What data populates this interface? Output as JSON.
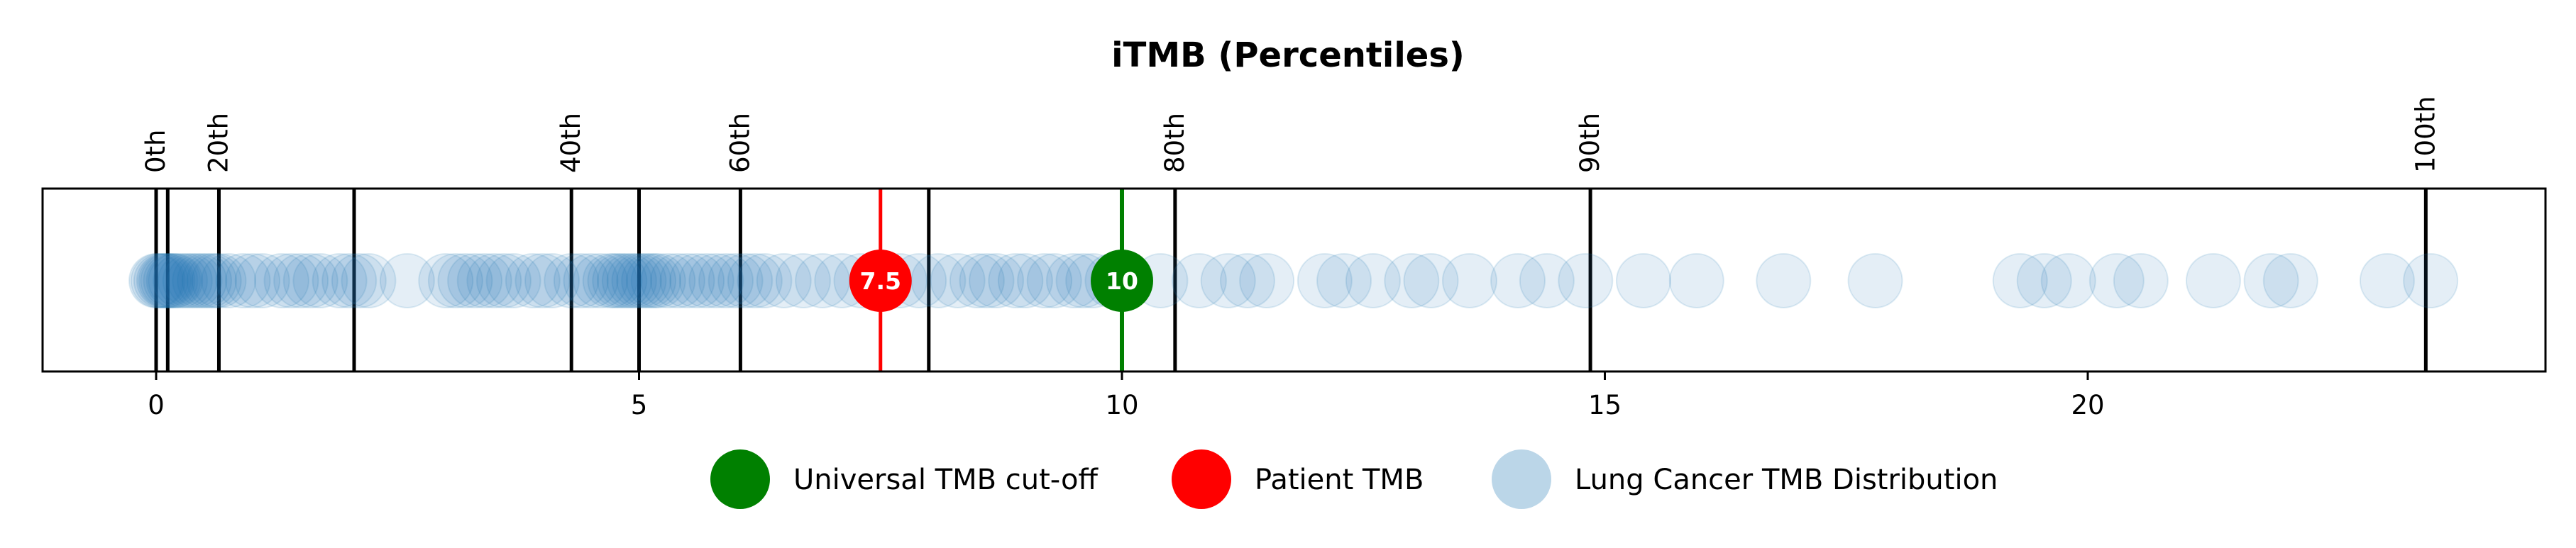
{
  "chart_data": {
    "type": "scatter",
    "title": "iTMB (Percentiles)",
    "xlim": [
      -1.2,
      24.7
    ],
    "xticks": [
      0,
      5,
      10,
      15,
      20
    ],
    "grid": false,
    "percentiles": [
      {
        "label": "0th",
        "value": 0.0,
        "show_label": true
      },
      {
        "label": "",
        "value": 0.12,
        "show_label": false
      },
      {
        "label": "20th",
        "value": 0.65,
        "show_label": true
      },
      {
        "label": "",
        "value": 2.05,
        "show_label": false
      },
      {
        "label": "40th",
        "value": 4.3,
        "show_label": true
      },
      {
        "label": "",
        "value": 5.0,
        "show_label": false
      },
      {
        "label": "60th",
        "value": 6.05,
        "show_label": true
      },
      {
        "label": "",
        "value": 8.0,
        "show_label": false
      },
      {
        "label": "80th",
        "value": 10.55,
        "show_label": true
      },
      {
        "label": "90th",
        "value": 14.85,
        "show_label": true
      },
      {
        "label": "100th",
        "value": 23.5,
        "show_label": true
      }
    ],
    "distribution": {
      "name": "Lung Cancer TMB Distribution",
      "color": "#1f77b4",
      "values": [
        0.0,
        0.02,
        0.05,
        0.08,
        0.1,
        0.12,
        0.15,
        0.18,
        0.2,
        0.25,
        0.3,
        0.35,
        0.4,
        0.45,
        0.5,
        0.55,
        0.6,
        0.65,
        0.75,
        0.9,
        1.0,
        1.1,
        1.3,
        1.4,
        1.5,
        1.6,
        1.7,
        1.9,
        2.0,
        2.1,
        2.2,
        2.6,
        3.0,
        3.1,
        3.2,
        3.3,
        3.4,
        3.5,
        3.6,
        3.7,
        3.9,
        4.0,
        4.1,
        4.3,
        4.4,
        4.5,
        4.6,
        4.7,
        4.75,
        4.8,
        4.85,
        4.9,
        4.95,
        5.0,
        5.05,
        5.1,
        5.15,
        5.2,
        5.3,
        5.4,
        5.5,
        5.6,
        5.7,
        5.8,
        5.9,
        6.0,
        6.1,
        6.2,
        6.3,
        6.5,
        6.7,
        6.9,
        7.1,
        7.3,
        7.7,
        7.9,
        8.1,
        8.3,
        8.5,
        8.6,
        8.7,
        8.9,
        9.0,
        9.2,
        9.3,
        9.5,
        9.6,
        9.7,
        9.9,
        10.4,
        10.8,
        11.1,
        11.3,
        11.5,
        12.1,
        12.3,
        12.6,
        13.0,
        13.2,
        13.6,
        14.1,
        14.4,
        14.8,
        15.4,
        15.95,
        16.85,
        17.8,
        19.3,
        19.55,
        19.8,
        20.3,
        20.55,
        21.3,
        21.9,
        22.1,
        23.1,
        23.55
      ]
    },
    "patient": {
      "name": "Patient TMB",
      "value": 7.5,
      "label": "7.5",
      "color": "#ff0000"
    },
    "cutoff": {
      "name": "Universal TMB cut-off",
      "value": 10,
      "label": "10",
      "color": "#008000"
    }
  },
  "legend": {
    "placement": "bottom-center",
    "items": [
      {
        "label": "Universal TMB cut-off",
        "color": "#008000",
        "alpha": 1
      },
      {
        "label": "Patient TMB",
        "color": "#ff0000",
        "alpha": 1
      },
      {
        "label": "Lung Cancer TMB Distribution",
        "color": "#1f77b4",
        "alpha": 0.3
      }
    ]
  }
}
